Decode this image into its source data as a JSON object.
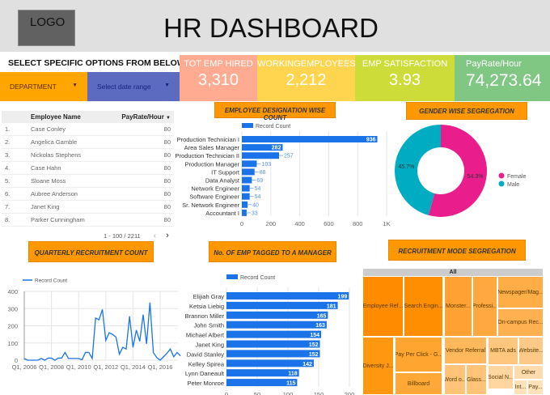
{
  "header": {
    "logo": "LOGO",
    "title": "HR DASHBOARD"
  },
  "filters": {
    "label": "SELECT SPECIFIC OPTIONS FROM BELOW",
    "department": "DEPARTMENT",
    "date_range": "Select date range"
  },
  "kpis": [
    {
      "label": "TOT EMP HIRED",
      "value": "3,310",
      "color": "#ffab91"
    },
    {
      "label": "WORKINGEMPLOYEES",
      "value": "2,212",
      "color": "#ffd54f"
    },
    {
      "label": "EMP SATISFACTION",
      "value": "3.93",
      "color": "#cddc39"
    },
    {
      "label": "PayRate/Hour",
      "value": "74,273.64",
      "color": "#81c784"
    }
  ],
  "table": {
    "headers": [
      "Employee Name",
      "PayRate/Hour"
    ],
    "sort_icon": "sort-desc-icon",
    "rows": [
      [
        "1.",
        "Case Conley",
        "80"
      ],
      [
        "2.",
        "Angelica Gamble",
        "80"
      ],
      [
        "3.",
        "Nickolas Stephens",
        "80"
      ],
      [
        "4.",
        "Case Hahn",
        "80"
      ],
      [
        "5.",
        "Sloane Moss",
        "80"
      ],
      [
        "6.",
        "Aubree Anderson",
        "80"
      ],
      [
        "7.",
        "Janet King",
        "80"
      ],
      [
        "8.",
        "Parker Cunningham",
        "80"
      ]
    ],
    "pagination": "1 - 100 / 2211"
  },
  "chart_data": [
    {
      "type": "bar",
      "title": "EMPLOYEE DESIGNATION WISE COUNT",
      "orientation": "horizontal",
      "legend": "Record Count",
      "color": "#1a73e8",
      "categories": [
        "Production Technician I",
        "Area Sales Manager",
        "Production Technician II",
        "Production Manager",
        "IT Support",
        "Data Analyst",
        "Network Engineer",
        "Software Engineer",
        "Sr. Network Engineer",
        "Accountant I"
      ],
      "values": [
        936,
        282,
        257,
        103,
        88,
        69,
        54,
        54,
        40,
        33
      ],
      "xlim": [
        0,
        1000
      ],
      "ticks": [
        "0",
        "200",
        "400",
        "600",
        "800",
        "1K"
      ]
    },
    {
      "type": "pie",
      "title": "GENDER WISE SEGREGATION",
      "donut": true,
      "categories": [
        "Female",
        "Male"
      ],
      "values": [
        54.3,
        45.7
      ],
      "labels": [
        "54.3%",
        "45.7%"
      ],
      "colors": [
        "#e91e8c",
        "#00acc1"
      ],
      "legend_position": "right"
    },
    {
      "type": "line",
      "title": "QUARTERLY RECRUITMENT COUNT",
      "legend": "Record Count",
      "color": "#1a73e8",
      "ylim": [
        0,
        400
      ],
      "yticks": [
        "0",
        "100",
        "200",
        "300",
        "400"
      ],
      "xticks": [
        "Q1, 2006",
        "Q1, 2008",
        "Q1, 2010",
        "Q1, 2012",
        "Q1, 2014",
        "Q1, 2016"
      ],
      "values": [
        10,
        0,
        0,
        0,
        0,
        10,
        0,
        12,
        12,
        0,
        12,
        12,
        45,
        10,
        10,
        10,
        10,
        2,
        45,
        45,
        10,
        245,
        235,
        295,
        115,
        160,
        150,
        135,
        35,
        75,
        65,
        255,
        75,
        175,
        110,
        265,
        95,
        335,
        45,
        15,
        0,
        20,
        40,
        65,
        20,
        45,
        25
      ]
    },
    {
      "type": "bar",
      "title": "No. OF EMP TAGGED TO A MANAGER",
      "orientation": "horizontal",
      "legend": "Record Count",
      "color": "#1a73e8",
      "categories": [
        "Elijiah Gray",
        "Ketsia Liebig",
        "Brannon Miller",
        "John Smith",
        "Michael Albert",
        "Janet King",
        "David Stanley",
        "Kelley Spirea",
        "Lynn Daneault",
        "Peter Monroe"
      ],
      "values": [
        199,
        181,
        165,
        163,
        154,
        152,
        152,
        142,
        118,
        115
      ],
      "xlim": [
        0,
        200
      ],
      "ticks": [
        "0",
        "50",
        "100",
        "150",
        "200"
      ]
    },
    {
      "type": "treemap",
      "title": "RECRUITMENT MODE SEGREGATION",
      "root": "All",
      "categories": [
        "Employee Ref...",
        "Search Engin...",
        "Monster...",
        "Professi...",
        "Newspager/Mag...",
        "On-campus Rec...",
        "Diversity J...",
        "Pay Per Click - G...",
        "Billboard",
        "Vendor Referral",
        "Word o...",
        "Glass...",
        "MBTA ads",
        "Website...",
        "Social N...",
        "Other",
        "Int...",
        "Pay..."
      ]
    }
  ]
}
